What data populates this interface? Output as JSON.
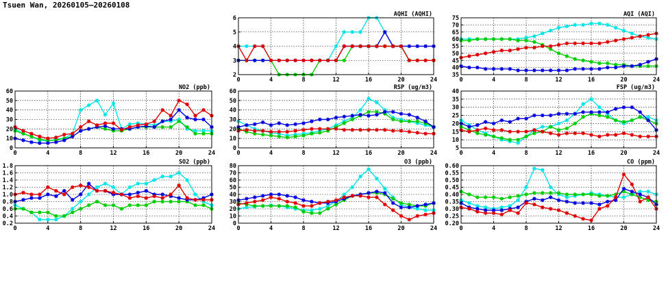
{
  "header": {
    "title": "Tsuen Wan, 20260105–20260108"
  },
  "chart_data": [
    {
      "id": "aqhi",
      "type": "line",
      "title": "AQHI (AQHI)",
      "xlim": [
        0,
        24
      ],
      "xticks": [
        0,
        4,
        8,
        12,
        16,
        20,
        24
      ],
      "ylim": [
        2,
        6
      ],
      "yticks": [
        2,
        3,
        4,
        5,
        6
      ],
      "grid": true,
      "series": [
        {
          "color": "#00e5e5",
          "values": [
            4,
            4,
            4,
            4,
            3,
            3,
            3,
            3,
            3,
            3,
            3,
            3,
            4,
            5,
            5,
            5,
            6,
            6,
            5,
            4,
            4,
            3,
            3,
            3,
            3
          ]
        },
        {
          "color": "#00cc00",
          "values": [
            3,
            3,
            3,
            3,
            3,
            2,
            2,
            2,
            2,
            2,
            3,
            3,
            3,
            3,
            4,
            4,
            4,
            4,
            4,
            4,
            4,
            3,
            3,
            3,
            3
          ]
        },
        {
          "color": "#0000dd",
          "values": [
            3,
            3,
            3,
            3,
            3,
            3,
            3,
            3,
            3,
            3,
            3,
            3,
            3,
            4,
            4,
            4,
            4,
            4,
            5,
            4,
            4,
            4,
            4,
            4,
            4
          ]
        },
        {
          "color": "#dd0000",
          "values": [
            4,
            3,
            4,
            4,
            3,
            3,
            3,
            3,
            3,
            3,
            3,
            3,
            3,
            4,
            4,
            4,
            4,
            4,
            4,
            4,
            4,
            3,
            3,
            3,
            3
          ]
        }
      ]
    },
    {
      "id": "aqi",
      "type": "line",
      "title": "AQI (AQI)",
      "xlim": [
        0,
        24
      ],
      "xticks": [
        0,
        4,
        8,
        12,
        16,
        20,
        24
      ],
      "ylim": [
        35,
        75
      ],
      "yticks": [
        35,
        40,
        45,
        50,
        55,
        60,
        65,
        70,
        75
      ],
      "grid": true,
      "series": [
        {
          "color": "#00e5e5",
          "values": [
            60,
            60,
            60,
            60,
            60,
            60,
            60,
            60,
            61,
            62,
            64,
            66,
            68,
            69,
            70,
            70,
            71,
            71,
            70,
            68,
            66,
            64,
            62,
            61,
            60
          ]
        },
        {
          "color": "#00cc00",
          "values": [
            59,
            59,
            60,
            60,
            60,
            60,
            60,
            59,
            59,
            58,
            56,
            53,
            50,
            48,
            46,
            45,
            44,
            43,
            43,
            42,
            42,
            41,
            41,
            41,
            41
          ]
        },
        {
          "color": "#0000dd",
          "values": [
            41,
            40,
            40,
            39,
            39,
            39,
            39,
            38,
            38,
            38,
            38,
            38,
            38,
            38,
            39,
            39,
            39,
            39,
            40,
            40,
            41,
            41,
            42,
            44,
            46
          ]
        },
        {
          "color": "#dd0000",
          "values": [
            47,
            48,
            49,
            50,
            51,
            52,
            52,
            53,
            54,
            54,
            55,
            55,
            56,
            57,
            57,
            57,
            57,
            57,
            58,
            59,
            60,
            61,
            62,
            63,
            64
          ]
        }
      ]
    },
    {
      "id": "no2",
      "type": "line",
      "title": "NO2 (ppb)",
      "xlim": [
        0,
        24
      ],
      "xticks": [
        0,
        4,
        8,
        12,
        16,
        20,
        24
      ],
      "ylim": [
        0,
        60
      ],
      "yticks": [
        0,
        10,
        20,
        30,
        40,
        50,
        60
      ],
      "grid": true,
      "series": [
        {
          "color": "#00e5e5",
          "values": [
            20,
            15,
            12,
            8,
            7,
            9,
            10,
            15,
            40,
            45,
            50,
            35,
            47,
            20,
            25,
            26,
            25,
            24,
            28,
            28,
            30,
            20,
            18,
            18,
            18
          ]
        },
        {
          "color": "#00cc00",
          "values": [
            18,
            15,
            12,
            9,
            8,
            8,
            10,
            12,
            18,
            20,
            22,
            20,
            18,
            18,
            20,
            22,
            22,
            22,
            22,
            22,
            28,
            22,
            15,
            15,
            15
          ]
        },
        {
          "color": "#0000dd",
          "values": [
            10,
            8,
            6,
            5,
            5,
            6,
            8,
            12,
            18,
            20,
            22,
            23,
            20,
            20,
            20,
            22,
            23,
            22,
            28,
            30,
            40,
            32,
            30,
            30,
            22
          ]
        },
        {
          "color": "#dd0000",
          "values": [
            22,
            18,
            15,
            12,
            10,
            11,
            14,
            15,
            22,
            28,
            24,
            26,
            26,
            19,
            22,
            24,
            25,
            28,
            40,
            34,
            50,
            46,
            34,
            40,
            34
          ]
        }
      ]
    },
    {
      "id": "rsp",
      "type": "line",
      "title": "RSP (ug/m3)",
      "xlim": [
        0,
        24
      ],
      "xticks": [
        0,
        4,
        8,
        12,
        16,
        20,
        24
      ],
      "ylim": [
        0,
        60
      ],
      "yticks": [
        0,
        10,
        20,
        30,
        40,
        50,
        60
      ],
      "grid": true,
      "series": [
        {
          "color": "#00e5e5",
          "values": [
            28,
            24,
            20,
            18,
            16,
            15,
            13,
            14,
            15,
            16,
            18,
            20,
            24,
            28,
            32,
            40,
            52,
            48,
            40,
            32,
            30,
            28,
            26,
            24,
            22
          ]
        },
        {
          "color": "#00cc00",
          "values": [
            20,
            17,
            15,
            14,
            13,
            12,
            11,
            12,
            13,
            15,
            16,
            18,
            22,
            26,
            30,
            34,
            38,
            38,
            36,
            30,
            28,
            28,
            28,
            26,
            22
          ]
        },
        {
          "color": "#0000dd",
          "values": [
            22,
            24,
            25,
            27,
            24,
            26,
            24,
            25,
            26,
            28,
            30,
            30,
            32,
            33,
            34,
            35,
            34,
            35,
            38,
            38,
            36,
            35,
            32,
            28,
            22
          ]
        },
        {
          "color": "#dd0000",
          "values": [
            18,
            19,
            18,
            18,
            17,
            17,
            17,
            18,
            19,
            20,
            20,
            20,
            20,
            19,
            19,
            19,
            19,
            19,
            19,
            18,
            18,
            17,
            16,
            15,
            15
          ]
        }
      ]
    },
    {
      "id": "fsp",
      "type": "line",
      "title": "FSP (ug/m3)",
      "xlim": [
        0,
        24
      ],
      "xticks": [
        0,
        4,
        8,
        12,
        16,
        20,
        24
      ],
      "ylim": [
        5,
        40
      ],
      "yticks": [
        5,
        10,
        15,
        20,
        25,
        30,
        35,
        40
      ],
      "grid": true,
      "series": [
        {
          "color": "#00e5e5",
          "values": [
            22,
            19,
            16,
            14,
            12,
            10,
            9,
            8,
            12,
            16,
            18,
            18,
            20,
            22,
            26,
            32,
            35,
            30,
            26,
            22,
            20,
            22,
            24,
            24,
            22
          ]
        },
        {
          "color": "#00cc00",
          "values": [
            18,
            16,
            14,
            13,
            12,
            11,
            10,
            10,
            12,
            14,
            15,
            18,
            16,
            17,
            20,
            24,
            26,
            25,
            24,
            22,
            21,
            22,
            24,
            22,
            20
          ]
        },
        {
          "color": "#0000dd",
          "values": [
            20,
            18,
            19,
            21,
            20,
            22,
            21,
            23,
            23,
            25,
            25,
            25,
            26,
            26,
            26,
            27,
            27,
            27,
            27,
            29,
            30,
            30,
            27,
            22,
            16
          ]
        },
        {
          "color": "#dd0000",
          "values": [
            16,
            15,
            16,
            17,
            16,
            16,
            15,
            15,
            15,
            16,
            15,
            14,
            13,
            14,
            14,
            14,
            13,
            12,
            13,
            13,
            14,
            13,
            12,
            12,
            12
          ]
        }
      ]
    },
    {
      "id": "so2",
      "type": "line",
      "title": "SO2 (ppb)",
      "xlim": [
        0,
        24
      ],
      "xticks": [
        0,
        4,
        8,
        12,
        16,
        20,
        24
      ],
      "ylim": [
        0.2,
        1.8
      ],
      "yticks": [
        0.2,
        0.4,
        0.6,
        0.8,
        1.0,
        1.2,
        1.4,
        1.6,
        1.8
      ],
      "grid": true,
      "series": [
        {
          "color": "#00e5e5",
          "values": [
            0.7,
            0.6,
            0.5,
            0.3,
            0.3,
            0.3,
            0.4,
            0.6,
            0.8,
            1.0,
            1.2,
            1.3,
            1.2,
            1.0,
            1.2,
            1.3,
            1.3,
            1.4,
            1.5,
            1.5,
            1.6,
            1.4,
            1.0,
            0.8,
            0.7
          ]
        },
        {
          "color": "#00cc00",
          "values": [
            0.6,
            0.6,
            0.5,
            0.5,
            0.5,
            0.4,
            0.4,
            0.5,
            0.6,
            0.7,
            0.8,
            0.7,
            0.7,
            0.6,
            0.7,
            0.7,
            0.7,
            0.8,
            0.8,
            0.8,
            0.8,
            0.8,
            0.7,
            0.7,
            0.6
          ]
        },
        {
          "color": "#0000dd",
          "values": [
            0.8,
            0.85,
            0.9,
            0.9,
            1.0,
            0.95,
            1.1,
            0.85,
            1.0,
            1.3,
            1.1,
            1.1,
            1.0,
            1.0,
            1.0,
            1.05,
            1.1,
            1.0,
            1.0,
            0.95,
            0.9,
            0.85,
            0.85,
            0.9,
            1.0
          ]
        },
        {
          "color": "#dd0000",
          "values": [
            1.0,
            1.05,
            1.0,
            1.0,
            1.2,
            1.1,
            1.0,
            1.2,
            1.25,
            1.2,
            1.1,
            1.1,
            1.05,
            1.0,
            0.9,
            0.95,
            0.9,
            0.95,
            0.9,
            1.0,
            1.25,
            0.9,
            0.85,
            0.85,
            0.85
          ]
        }
      ]
    },
    {
      "id": "o3",
      "type": "line",
      "title": "O3 (ppb)",
      "xlim": [
        0,
        24
      ],
      "xticks": [
        0,
        4,
        8,
        12,
        16,
        20,
        24
      ],
      "ylim": [
        0,
        80
      ],
      "yticks": [
        0,
        10,
        20,
        30,
        40,
        50,
        60,
        70,
        80
      ],
      "grid": true,
      "series": [
        {
          "color": "#00e5e5",
          "values": [
            20,
            22,
            23,
            24,
            25,
            24,
            22,
            20,
            18,
            18,
            20,
            24,
            30,
            40,
            50,
            65,
            75,
            62,
            48,
            36,
            26,
            22,
            20,
            18,
            18
          ]
        },
        {
          "color": "#00cc00",
          "values": [
            28,
            26,
            24,
            24,
            24,
            24,
            24,
            22,
            16,
            14,
            14,
            20,
            26,
            32,
            38,
            40,
            42,
            42,
            40,
            34,
            28,
            26,
            24,
            24,
            28
          ]
        },
        {
          "color": "#0000dd",
          "values": [
            32,
            34,
            36,
            38,
            40,
            40,
            38,
            36,
            32,
            30,
            28,
            28,
            30,
            34,
            38,
            40,
            42,
            44,
            42,
            28,
            22,
            22,
            24,
            26,
            28
          ]
        },
        {
          "color": "#dd0000",
          "values": [
            26,
            28,
            30,
            32,
            36,
            34,
            30,
            28,
            24,
            24,
            28,
            30,
            32,
            36,
            38,
            38,
            36,
            36,
            26,
            18,
            10,
            5,
            10,
            12,
            14
          ]
        }
      ]
    },
    {
      "id": "co",
      "type": "line",
      "title": "CO (ppm)",
      "xlim": [
        0,
        24
      ],
      "xticks": [
        0,
        4,
        8,
        12,
        16,
        20,
        24
      ],
      "ylim": [
        0.2,
        0.6
      ],
      "yticks": [
        0.2,
        0.25,
        0.3,
        0.35,
        0.4,
        0.45,
        0.5,
        0.55,
        0.6
      ],
      "grid": true,
      "series": [
        {
          "color": "#00e5e5",
          "values": [
            0.36,
            0.34,
            0.32,
            0.31,
            0.3,
            0.31,
            0.32,
            0.36,
            0.45,
            0.58,
            0.57,
            0.45,
            0.4,
            0.38,
            0.39,
            0.4,
            0.41,
            0.4,
            0.39,
            0.38,
            0.38,
            0.4,
            0.42,
            0.42,
            0.4
          ]
        },
        {
          "color": "#00cc00",
          "values": [
            0.42,
            0.4,
            0.38,
            0.38,
            0.38,
            0.37,
            0.38,
            0.39,
            0.4,
            0.41,
            0.41,
            0.41,
            0.41,
            0.4,
            0.4,
            0.4,
            0.4,
            0.39,
            0.39,
            0.4,
            0.42,
            0.4,
            0.38,
            0.36,
            0.35
          ]
        },
        {
          "color": "#0000dd",
          "values": [
            0.34,
            0.31,
            0.3,
            0.29,
            0.29,
            0.29,
            0.3,
            0.31,
            0.35,
            0.37,
            0.36,
            0.38,
            0.36,
            0.35,
            0.34,
            0.34,
            0.34,
            0.33,
            0.35,
            0.36,
            0.44,
            0.42,
            0.4,
            0.38,
            0.33
          ]
        },
        {
          "color": "#dd0000",
          "values": [
            0.31,
            0.3,
            0.28,
            0.27,
            0.27,
            0.26,
            0.29,
            0.27,
            0.34,
            0.33,
            0.31,
            0.3,
            0.29,
            0.27,
            0.25,
            0.23,
            0.22,
            0.3,
            0.32,
            0.38,
            0.54,
            0.47,
            0.35,
            0.38,
            0.3
          ]
        }
      ]
    }
  ]
}
